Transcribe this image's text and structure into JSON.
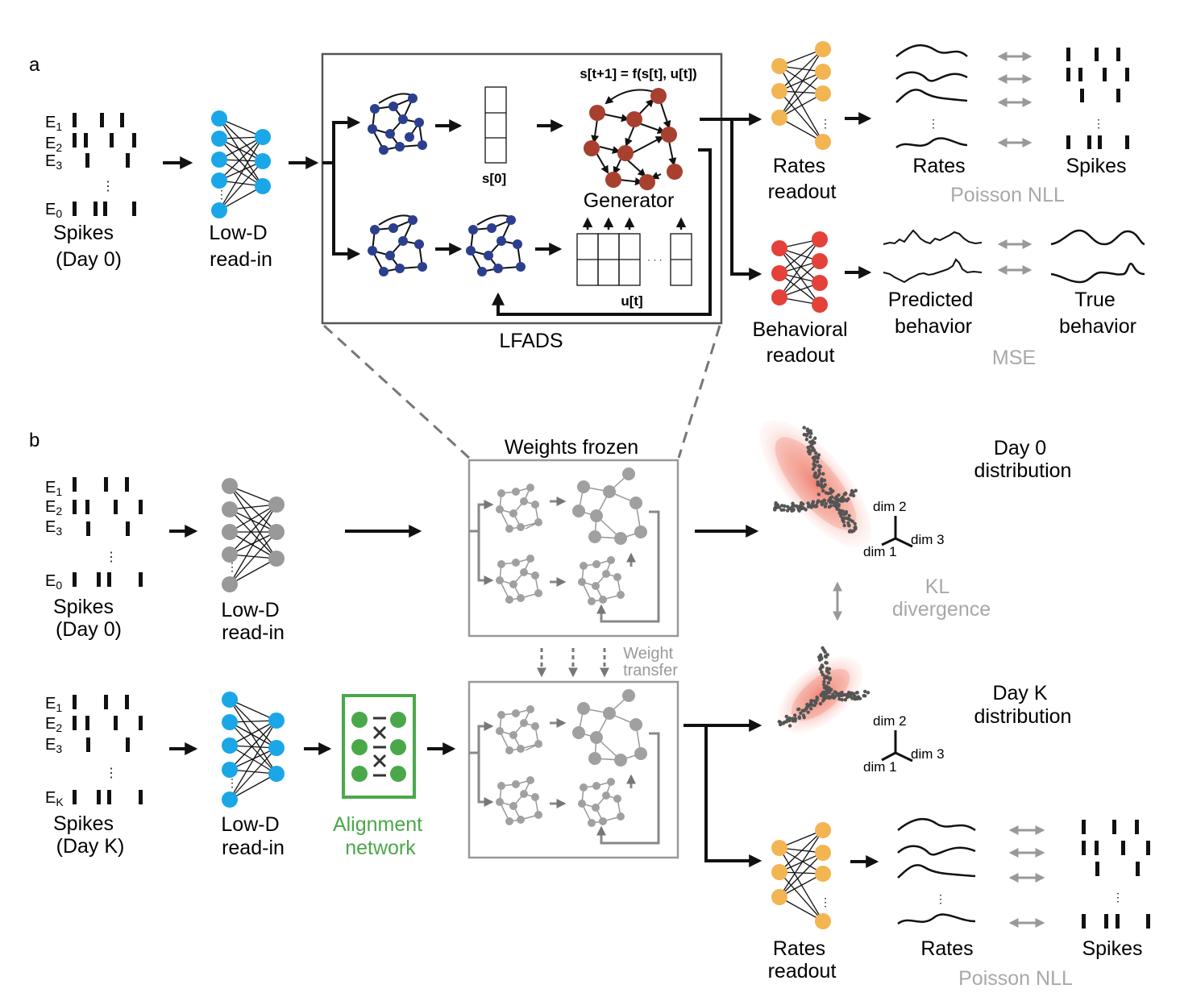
{
  "panels": {
    "a": {
      "label": "a",
      "electrodes": [
        "E",
        "E",
        "E",
        "E"
      ],
      "electrode_subs": [
        "1",
        "2",
        "3",
        "0"
      ],
      "spikes_label": [
        "Spikes",
        "(Day 0)"
      ],
      "readin_label": [
        "Low-D",
        "read-in"
      ],
      "equation": "s[t+1] = f(s[t], u[t])",
      "s0_label": "s[0]",
      "ut_label": "u[t]",
      "generator_label": "Generator",
      "lfads_label": "LFADS",
      "rates_readout_label": [
        "Rates",
        "readout"
      ],
      "rates_label": "Rates",
      "spikes_out_label": "Spikes",
      "poisson_label": "Poisson NLL",
      "behavioral_readout_label": [
        "Behavioral",
        "readout"
      ],
      "predicted_label": [
        "Predicted",
        "behavior"
      ],
      "true_label": [
        "True",
        "behavior"
      ],
      "mse_label": "MSE"
    },
    "b": {
      "label": "b",
      "electrodes_top": [
        "E",
        "E",
        "E",
        "E"
      ],
      "electrode_subs_top": [
        "1",
        "2",
        "3",
        "0"
      ],
      "electrodes_bottom": [
        "E",
        "E",
        "E",
        "E"
      ],
      "electrode_subs_bottom": [
        "1",
        "2",
        "3",
        "K"
      ],
      "spikes_day0": [
        "Spikes",
        "(Day 0)"
      ],
      "spikes_dayk": [
        "Spikes",
        "(Day K)"
      ],
      "readin_label": [
        "Low-D",
        "read-in"
      ],
      "weights_frozen": "Weights frozen",
      "weight_transfer": [
        "Weight",
        "transfer"
      ],
      "alignment_label": [
        "Alignment",
        "network"
      ],
      "day0_dist": [
        "Day 0",
        "distribution"
      ],
      "dayk_dist": [
        "Day K",
        "distribution"
      ],
      "dims": [
        "dim 1",
        "dim 2",
        "dim 3"
      ],
      "kl_label": [
        "KL",
        "divergence"
      ],
      "rates_readout_label": [
        "Rates",
        "readout"
      ],
      "rates_label": "Rates",
      "spikes_out_label": "Spikes",
      "poisson_label": "Poisson NLL"
    }
  },
  "colors": {
    "ink": "#111111",
    "gray": "#999999",
    "light_gray": "#a8a8a8",
    "cyan": "#1aa7e8",
    "orange": "#f2b552",
    "red": "#e4413a",
    "brown": "#a8402f",
    "navy": "#2c3f8f",
    "green": "#4aa84a",
    "pink": "#f08070"
  }
}
